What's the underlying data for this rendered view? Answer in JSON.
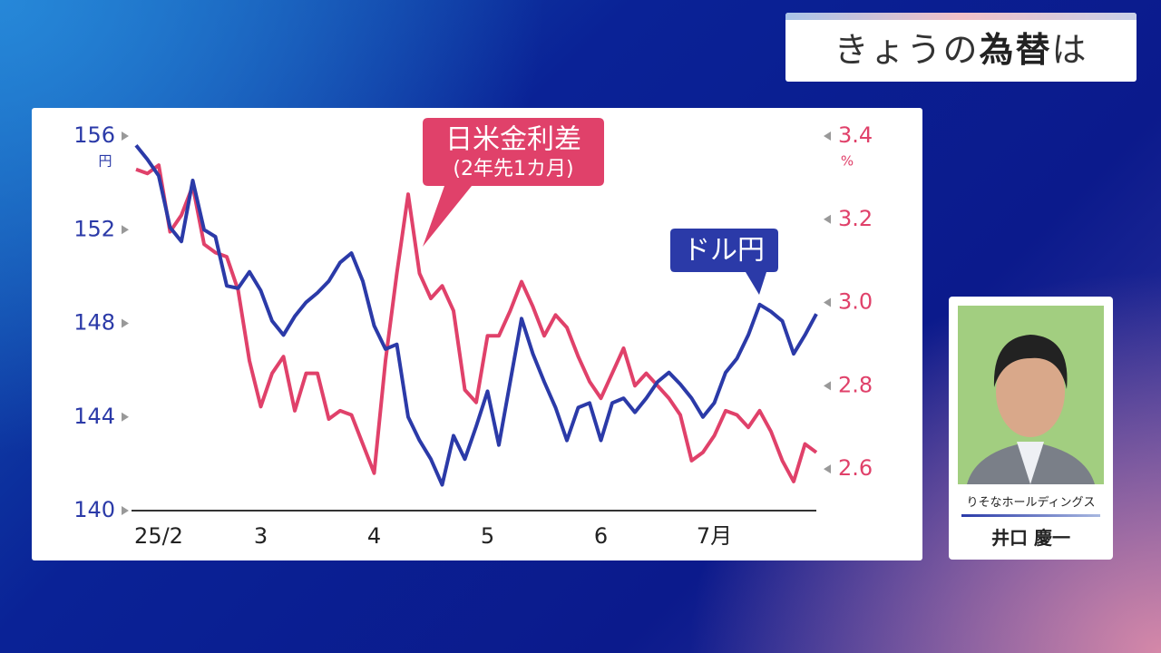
{
  "header": {
    "title_parts": [
      "きょうの",
      "為替",
      "は"
    ]
  },
  "caption": {
    "company": "りそなホールディングス",
    "name": "井口 慶一"
  },
  "chart_data": {
    "type": "line",
    "categories": [
      null,
      null,
      "25/2",
      null,
      null,
      null,
      null,
      null,
      null,
      null,
      null,
      "3",
      null,
      null,
      null,
      null,
      null,
      null,
      null,
      null,
      null,
      "4",
      null,
      null,
      null,
      null,
      null,
      null,
      null,
      null,
      null,
      "5",
      null,
      null,
      null,
      null,
      null,
      null,
      null,
      null,
      null,
      "6",
      null,
      null,
      null,
      null,
      null,
      null,
      null,
      null,
      null,
      "7月",
      null,
      null,
      null,
      null,
      null,
      null,
      null,
      null,
      null
    ],
    "series": [
      {
        "name": "ドル円",
        "color": "#2b3aa8",
        "axis": "y",
        "values": [
          155.6,
          155.0,
          154.3,
          152.1,
          151.5,
          154.1,
          152.0,
          151.7,
          149.6,
          149.5,
          150.2,
          149.4,
          148.1,
          147.5,
          148.3,
          148.9,
          149.3,
          149.8,
          150.6,
          151.0,
          149.8,
          147.9,
          146.9,
          147.1,
          144.0,
          143.0,
          142.2,
          141.1,
          143.2,
          142.2,
          143.6,
          145.1,
          142.8,
          145.5,
          148.2,
          146.7,
          145.5,
          144.4,
          143.0,
          144.4,
          144.6,
          143.0,
          144.6,
          144.8,
          144.2,
          144.8,
          145.5,
          145.9,
          145.4,
          144.8,
          144.0,
          144.6,
          145.9,
          146.5,
          147.5,
          148.8,
          148.5,
          148.1,
          146.7,
          147.5,
          148.4
        ]
      },
      {
        "name": "日米金利差",
        "subname": "(2年先1カ月)",
        "color": "#e0416a",
        "axis": "y2",
        "values": [
          3.32,
          3.31,
          3.33,
          3.17,
          3.21,
          3.28,
          3.14,
          3.12,
          3.11,
          3.03,
          2.86,
          2.75,
          2.83,
          2.87,
          2.74,
          2.83,
          2.83,
          2.72,
          2.74,
          2.73,
          2.66,
          2.59,
          2.86,
          3.07,
          3.26,
          3.07,
          3.01,
          3.04,
          2.98,
          2.79,
          2.76,
          2.92,
          2.92,
          2.98,
          3.05,
          2.99,
          2.92,
          2.97,
          2.94,
          2.87,
          2.81,
          2.77,
          2.83,
          2.89,
          2.8,
          2.83,
          2.8,
          2.77,
          2.73,
          2.62,
          2.64,
          2.68,
          2.74,
          2.73,
          2.7,
          2.74,
          2.69,
          2.62,
          2.57,
          2.66,
          2.64
        ]
      }
    ],
    "ylim": [
      140,
      156
    ],
    "yticks": [
      140,
      144,
      148,
      152,
      156
    ],
    "y_unit": "円",
    "y2lim": [
      2.5,
      3.4
    ],
    "y2ticks": [
      2.6,
      2.8,
      {
        "value": 3,
        "label": "3.0"
      },
      3.2,
      3.4
    ],
    "y2_unit": "%"
  }
}
